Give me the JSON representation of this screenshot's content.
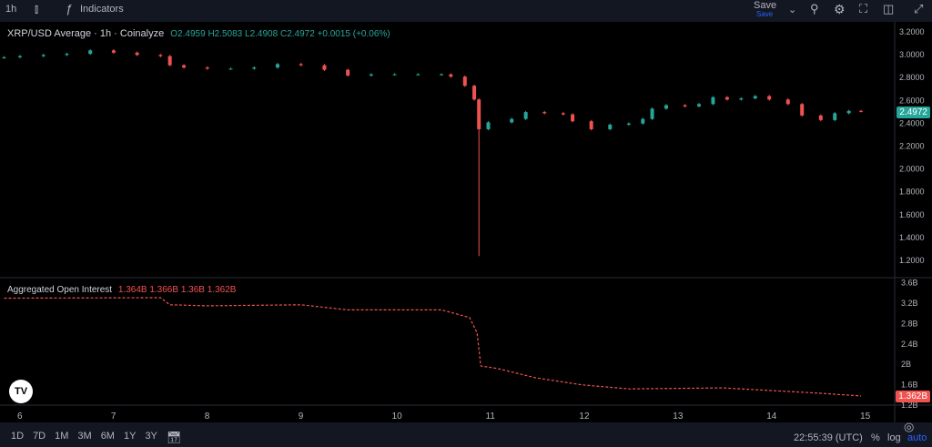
{
  "toolbar": {
    "interval": "1h",
    "indicators_label": "Indicators",
    "save_label": "Save",
    "save_sub": "Save",
    "icons": [
      "candles-icon",
      "fx-icon",
      "chevron-down-icon",
      "alert-icon",
      "gear-icon",
      "fullscreen-icon",
      "camera-icon",
      "expand-icon"
    ]
  },
  "price_legend": {
    "title": "XRP/USD Average · 1h · Coinalyze",
    "o": "O2.4959",
    "h": "H2.5083",
    "l": "L2.4908",
    "c": "C2.4972",
    "change": "+0.0015 (+0.06%)"
  },
  "oi_legend": {
    "title": "Aggregated Open Interest",
    "values": [
      "1.364B",
      "1.366B",
      "1.36B",
      "1.362B"
    ]
  },
  "colors": {
    "up": "#26a69a",
    "down": "#ef5350",
    "accent": "#2962ff"
  },
  "chart_data": [
    {
      "type": "candlestick",
      "title": "XRP/USD Average · 1h · Coinalyze",
      "ylim": [
        1.1,
        3.25
      ],
      "yticks": [
        "3.2000",
        "3.0000",
        "2.8000",
        "2.6000",
        "2.4000",
        "2.2000",
        "2.0000",
        "1.8000",
        "1.6000",
        "1.4000",
        "1.2000"
      ],
      "last_value": "2.4972",
      "x": [
        5.83,
        6.0,
        6.25,
        6.5,
        6.75,
        7.0,
        7.25,
        7.5,
        7.6,
        7.75,
        8.0,
        8.25,
        8.5,
        8.75,
        9.0,
        9.25,
        9.5,
        9.75,
        10.0,
        10.25,
        10.5,
        10.6,
        10.75,
        10.85,
        10.9,
        11.0,
        11.25,
        11.4,
        11.6,
        11.8,
        11.9,
        12.1,
        12.3,
        12.5,
        12.65,
        12.75,
        12.9,
        13.1,
        13.25,
        13.4,
        13.55,
        13.7,
        13.85,
        14.0,
        14.2,
        14.35,
        14.55,
        14.7,
        14.85,
        14.98
      ],
      "close": [
        2.97,
        2.98,
        2.99,
        3.0,
        3.03,
        3.01,
        2.99,
        2.98,
        2.9,
        2.88,
        2.87,
        2.87,
        2.88,
        2.91,
        2.9,
        2.86,
        2.81,
        2.82,
        2.82,
        2.82,
        2.82,
        2.8,
        2.72,
        2.6,
        2.34,
        2.4,
        2.43,
        2.49,
        2.48,
        2.47,
        2.41,
        2.34,
        2.38,
        2.39,
        2.43,
        2.52,
        2.55,
        2.54,
        2.56,
        2.62,
        2.6,
        2.61,
        2.63,
        2.6,
        2.56,
        2.46,
        2.42,
        2.48,
        2.5,
        2.4972
      ],
      "spike_low": {
        "x": 10.9,
        "low": 1.23
      }
    },
    {
      "type": "line",
      "title": "Aggregated Open Interest",
      "ylim": [
        1.15,
        3.65
      ],
      "yticks": [
        "3.6B",
        "3.2B",
        "2.8B",
        "2.4B",
        "2B",
        "1.6B",
        "1.2B"
      ],
      "last_value": "1.362B",
      "x": [
        5.83,
        7.5,
        7.6,
        8.0,
        9.0,
        9.5,
        10.5,
        10.8,
        10.88,
        10.92,
        11.1,
        11.5,
        12.0,
        12.5,
        13.5,
        14.5,
        14.98
      ],
      "values_billion": [
        3.28,
        3.29,
        3.15,
        3.13,
        3.15,
        3.05,
        3.05,
        2.9,
        2.6,
        1.95,
        1.9,
        1.72,
        1.58,
        1.5,
        1.52,
        1.42,
        1.362
      ]
    }
  ],
  "time_axis": {
    "labels": [
      "6",
      "7",
      "8",
      "9",
      "10",
      "11",
      "12",
      "13",
      "14",
      "15"
    ],
    "clock": "22:55:39 (UTC)"
  },
  "ranges": [
    "1D",
    "7D",
    "1M",
    "3M",
    "6M",
    "1Y",
    "3Y"
  ],
  "scale_buttons": {
    "percent": "%",
    "log": "log",
    "auto": "auto"
  }
}
